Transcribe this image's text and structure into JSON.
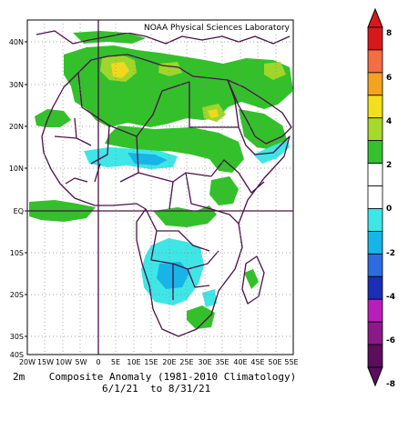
{
  "map": {
    "credit": "NOAA Physical Sciences Laboratory",
    "lat_labels": [
      "40N",
      "30N",
      "20N",
      "10N",
      "EQ",
      "10S",
      "20S",
      "30S",
      "40S"
    ],
    "lon_labels": [
      "20W",
      "15W",
      "10W",
      "5W",
      "0",
      "5E",
      "10E",
      "15E",
      "20E",
      "25E",
      "30E",
      "35E",
      "40E",
      "45E",
      "50E",
      "55E"
    ],
    "extent": {
      "lon": [
        -20,
        55
      ],
      "lat": [
        -40,
        45
      ]
    }
  },
  "colorbar": {
    "labels": [
      "8",
      "6",
      "4",
      "2",
      "0",
      "-2",
      "-4",
      "-6",
      "-8"
    ],
    "colors": [
      "#d7191c",
      "#f46d43",
      "#f4a320",
      "#f2e01c",
      "#a6d92b",
      "#34c12e",
      "#ffffff",
      "#ffffff",
      "#3fe6e6",
      "#17b4e8",
      "#2c6ce0",
      "#1b2fb5",
      "#b81fb8",
      "#8a1a8a",
      "#5b0e5b"
    ]
  },
  "caption": {
    "line1": "2m    Composite Anomaly (1981-2010 Climatology)",
    "line2": "6/1/21  to 8/31/21"
  },
  "colors": {
    "green": "#33c02b",
    "light_green": "#9fd62c",
    "yellow": "#f2d81c",
    "cyan": "#3fe6e6",
    "sky": "#17b4e8",
    "border": "#4a1048"
  }
}
